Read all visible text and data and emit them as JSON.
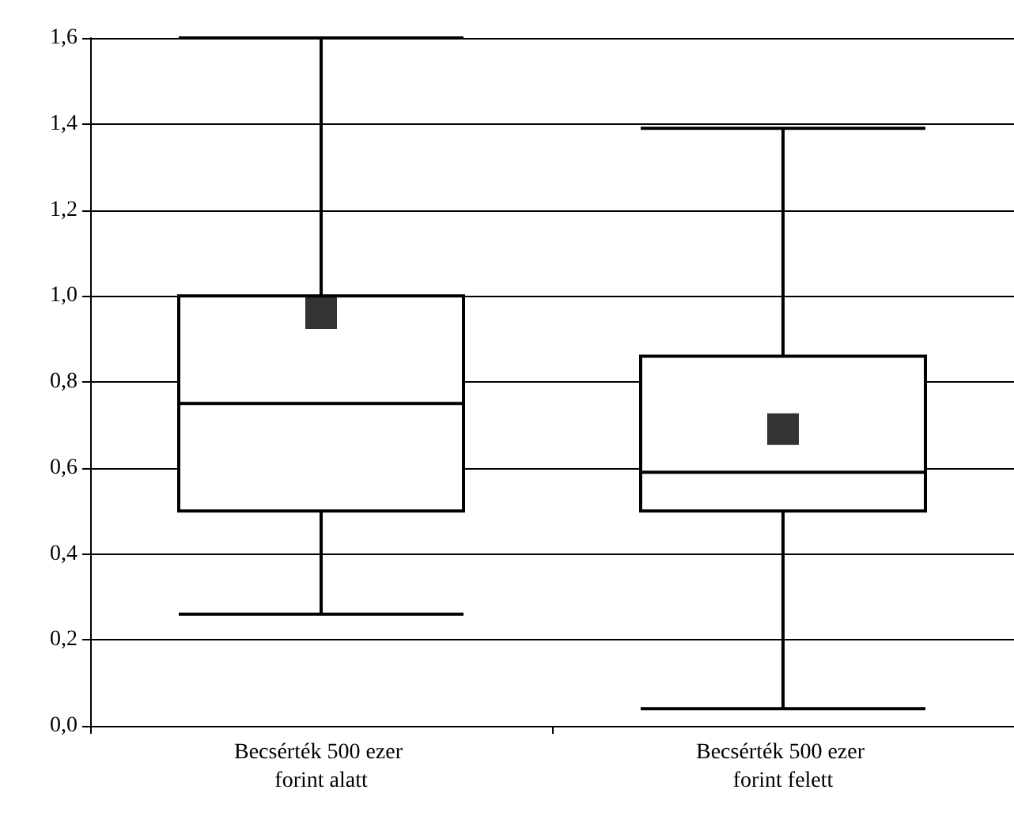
{
  "chart_data": {
    "type": "box",
    "categories": [
      "Becsérték 500 ezer forint alatt",
      "Becsérték 500 ezer forint felett"
    ],
    "boxes": [
      {
        "low": 0.26,
        "q1": 0.5,
        "median": 0.75,
        "q3": 1.0,
        "high": 1.6,
        "mean": 0.96
      },
      {
        "low": 0.04,
        "q1": 0.5,
        "median": 0.59,
        "q3": 0.86,
        "high": 1.39,
        "mean": 0.69
      }
    ],
    "color": "#000000",
    "ylim": [
      0,
      1.6
    ],
    "yticks": [
      {
        "value": 0,
        "label": "0,0"
      },
      {
        "value": 0.2,
        "label": "0,2"
      },
      {
        "value": 0.4,
        "label": "0,4"
      },
      {
        "value": 0.6,
        "label": "0,6"
      },
      {
        "value": 0.8,
        "label": "0,8"
      },
      {
        "value": 1.0,
        "label": "1,0"
      },
      {
        "value": 1.2,
        "label": "1,2"
      },
      {
        "value": 1.4,
        "label": "1,4"
      },
      {
        "value": 1.6,
        "label": "1,6"
      }
    ],
    "grid": "y"
  }
}
